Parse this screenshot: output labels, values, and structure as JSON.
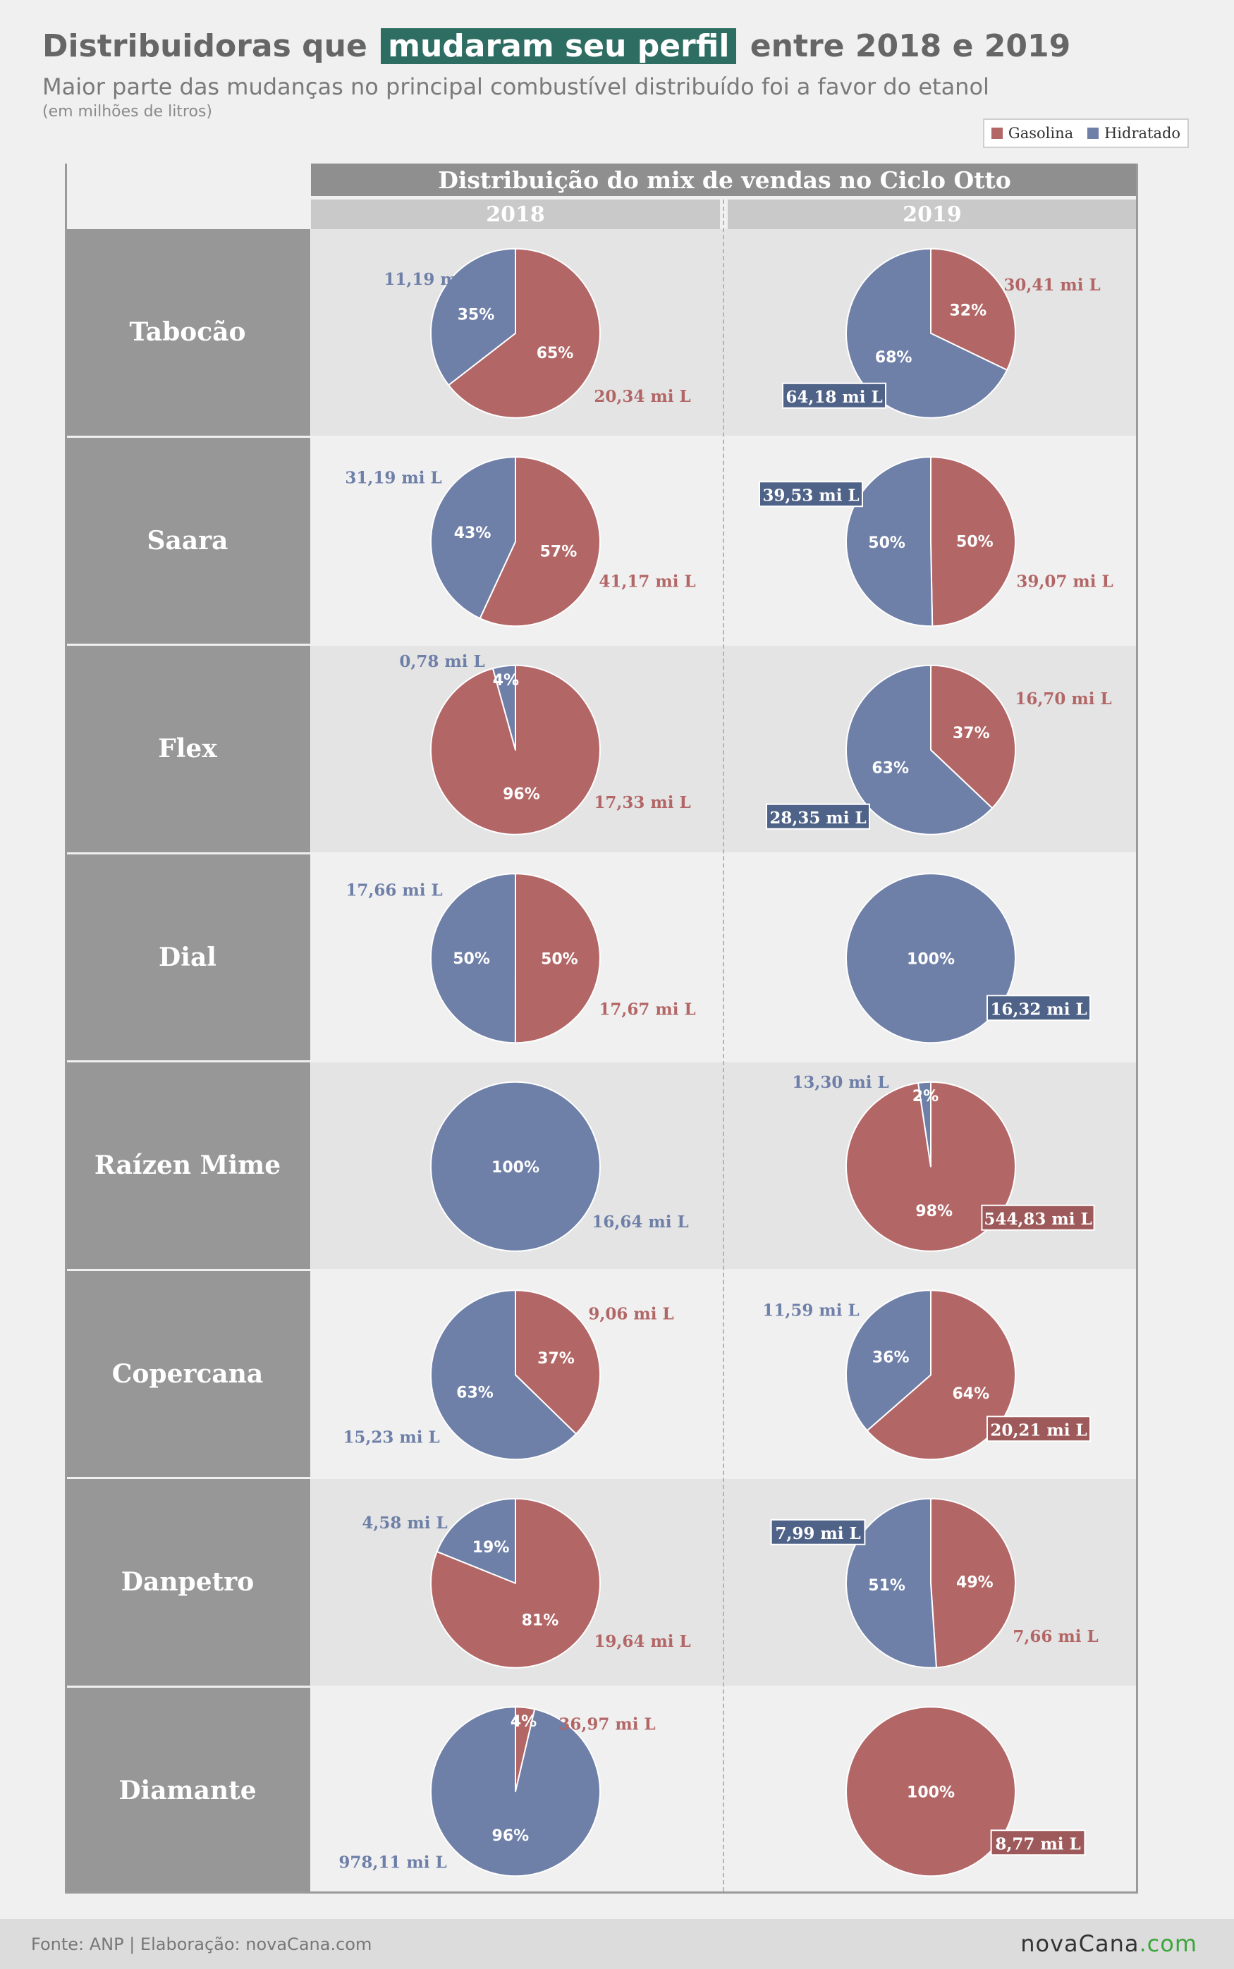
{
  "header": {
    "title_pre": "Distribuidoras que",
    "title_highlight": "mudaram seu perfil",
    "title_post": "entre 2018 e 2019",
    "subtitle": "Maior parte das mudanças no principal combustível distribuído foi a favor do etanol",
    "unit": "(em milhões de litros)"
  },
  "legend": {
    "gasolina": "Gasolina",
    "hidratado": "Hidratado"
  },
  "colors": {
    "gasolina": "#b36666",
    "hidratado": "#6e7fa8",
    "gasolina_box": "#9e5a5a",
    "hidratado_box": "#4f6287",
    "title_highlight": "#2e6d62"
  },
  "table": {
    "header": "Distribuição do mix de vendas no Ciclo Otto",
    "year_2018": "2018",
    "year_2019": "2019"
  },
  "chart_data": {
    "type": "pie",
    "title": "Distribuição do mix de vendas no Ciclo Otto",
    "series_names": [
      "Gasolina",
      "Hidratado"
    ],
    "unit": "mi L",
    "rows": [
      {
        "name": "Tabocão",
        "y2018": {
          "gasolina": {
            "pct": "65%",
            "label": "20,34 mi L",
            "value": 20.34
          },
          "hidratado": {
            "pct": "35%",
            "label": "11,19 mi L",
            "value": 11.19
          }
        },
        "y2019": {
          "gasolina": {
            "pct": "32%",
            "label": "30,41 mi L",
            "value": 30.41
          },
          "hidratado": {
            "pct": "68%",
            "label": "64,18 mi L",
            "value": 64.18
          }
        }
      },
      {
        "name": "Saara",
        "y2018": {
          "gasolina": {
            "pct": "57%",
            "label": "41,17 mi L",
            "value": 41.17
          },
          "hidratado": {
            "pct": "43%",
            "label": "31,19 mi L",
            "value": 31.19
          }
        },
        "y2019": {
          "gasolina": {
            "pct": "50%",
            "label": "39,07 mi L",
            "value": 39.07
          },
          "hidratado": {
            "pct": "50%",
            "label": "39,53 mi L",
            "value": 39.53
          }
        }
      },
      {
        "name": "Flex",
        "y2018": {
          "gasolina": {
            "pct": "96%",
            "label": "17,33 mi L",
            "value": 17.33
          },
          "hidratado": {
            "pct": "4%",
            "label": "0,78 mi L",
            "value": 0.78
          }
        },
        "y2019": {
          "gasolina": {
            "pct": "37%",
            "label": "16,70 mi L",
            "value": 16.7
          },
          "hidratado": {
            "pct": "63%",
            "label": "28,35 mi L",
            "value": 28.35
          }
        }
      },
      {
        "name": "Dial",
        "y2018": {
          "gasolina": {
            "pct": "50%",
            "label": "17,67 mi L",
            "value": 17.67
          },
          "hidratado": {
            "pct": "50%",
            "label": "17,66 mi L",
            "value": 17.66
          }
        },
        "y2019": {
          "gasolina": {
            "pct": "",
            "label": "",
            "value": 0
          },
          "hidratado": {
            "pct": "100%",
            "label": "16,32 mi L",
            "value": 16.32
          }
        }
      },
      {
        "name": "Raízen Mime",
        "y2018": {
          "gasolina": {
            "pct": "",
            "label": "",
            "value": 0
          },
          "hidratado": {
            "pct": "100%",
            "label": "16,64 mi L",
            "value": 16.64
          }
        },
        "y2019": {
          "gasolina": {
            "pct": "98%",
            "label": "544,83 mi L",
            "value": 544.83
          },
          "hidratado": {
            "pct": "2%",
            "label": "13,30 mi L",
            "value": 13.3
          }
        }
      },
      {
        "name": "Copercana",
        "y2018": {
          "gasolina": {
            "pct": "37%",
            "label": "9,06 mi L",
            "value": 9.06
          },
          "hidratado": {
            "pct": "63%",
            "label": "15,23 mi L",
            "value": 15.23
          }
        },
        "y2019": {
          "gasolina": {
            "pct": "64%",
            "label": "20,21 mi L",
            "value": 20.21
          },
          "hidratado": {
            "pct": "36%",
            "label": "11,59 mi L",
            "value": 11.59
          }
        }
      },
      {
        "name": "Danpetro",
        "y2018": {
          "gasolina": {
            "pct": "81%",
            "label": "19,64 mi L",
            "value": 19.64
          },
          "hidratado": {
            "pct": "19%",
            "label": "4,58 mi L",
            "value": 4.58
          }
        },
        "y2019": {
          "gasolina": {
            "pct": "49%",
            "label": "7,66 mi L",
            "value": 7.66
          },
          "hidratado": {
            "pct": "51%",
            "label": "7,99 mi L",
            "value": 7.99
          }
        }
      },
      {
        "name": "Diamante",
        "y2018": {
          "gasolina": {
            "pct": "4%",
            "label": "36,97 mi L",
            "value": 36.97
          },
          "hidratado": {
            "pct": "96%",
            "label": "978,11 mi L",
            "value": 978.11
          }
        },
        "y2019": {
          "gasolina": {
            "pct": "100%",
            "label": "8,77 mi L",
            "value": 8.77
          },
          "hidratado": {
            "pct": "",
            "label": "",
            "value": 0
          }
        }
      }
    ]
  },
  "footer": {
    "source": "Fonte: ANP | Elaboração: novaCana.com",
    "brand_name": "novaCana",
    "brand_domain": ".com"
  }
}
